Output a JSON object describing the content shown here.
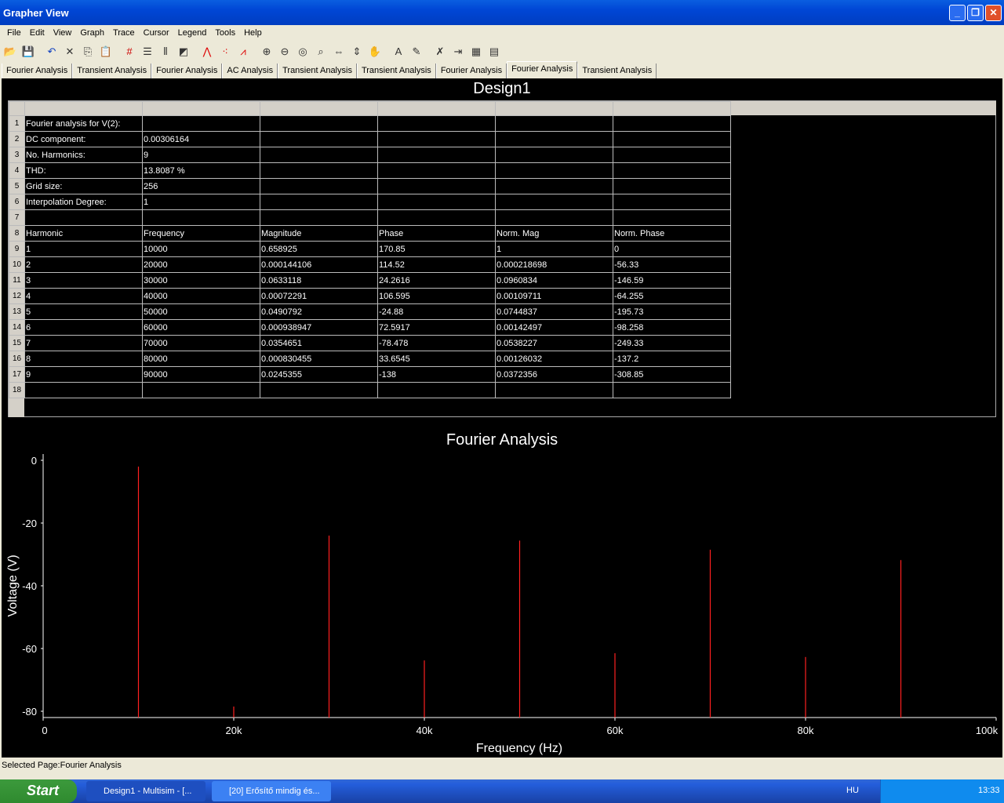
{
  "window": {
    "title": "Grapher View",
    "controls": [
      "_",
      "❐",
      "✕"
    ]
  },
  "menu": [
    "File",
    "Edit",
    "View",
    "Graph",
    "Trace",
    "Cursor",
    "Legend",
    "Tools",
    "Help"
  ],
  "toolbar_icons": [
    "open-icon",
    "save-icon",
    "undo-icon",
    "delete-icon",
    "copy-icon",
    "paste-icon",
    "grid-icon",
    "legend-icon",
    "cursors-icon",
    "reverse-colors-icon",
    "line-icon",
    "points-icon",
    "line-points-icon",
    "zoom-in-icon",
    "zoom-out-icon",
    "zoom-100-icon",
    "zoom-area-icon",
    "zoom-x-icon",
    "zoom-y-icon",
    "pan-icon",
    "text-icon",
    "label-icon",
    "overlay-icon",
    "export-icon",
    "page-properties-icon",
    "properties-icon"
  ],
  "tabs": [
    {
      "label": "Fourier Analysis"
    },
    {
      "label": "Transient Analysis"
    },
    {
      "label": "Fourier Analysis"
    },
    {
      "label": "AC Analysis"
    },
    {
      "label": "Transient Analysis"
    },
    {
      "label": "Transient Analysis"
    },
    {
      "label": "Fourier Analysis"
    },
    {
      "label": "Fourier Analysis",
      "active": true
    },
    {
      "label": "Transient Analysis"
    }
  ],
  "page_title": "Design1",
  "table": {
    "rows": [
      [
        "Fourier analysis for V(2):",
        "",
        "",
        "",
        "",
        ""
      ],
      [
        "DC component:",
        "0.00306164",
        "",
        "",
        "",
        ""
      ],
      [
        "No. Harmonics:",
        "9",
        "",
        "",
        "",
        ""
      ],
      [
        "THD:",
        "13.8087 %",
        "",
        "",
        "",
        ""
      ],
      [
        "Grid size:",
        "256",
        "",
        "",
        "",
        ""
      ],
      [
        "Interpolation Degree:",
        "1",
        "",
        "",
        "",
        ""
      ],
      [
        "",
        "",
        "",
        "",
        "",
        ""
      ],
      [
        "Harmonic",
        "Frequency",
        "Magnitude",
        "Phase",
        "Norm. Mag",
        "Norm. Phase"
      ],
      [
        "1",
        "10000",
        "0.658925",
        "170.85",
        "1",
        "0"
      ],
      [
        "2",
        "20000",
        "0.000144106",
        "114.52",
        "0.000218698",
        "-56.33"
      ],
      [
        "3",
        "30000",
        "0.0633118",
        "24.2616",
        "0.0960834",
        "-146.59"
      ],
      [
        "4",
        "40000",
        "0.00072291",
        "106.595",
        "0.00109711",
        "-64.255"
      ],
      [
        "5",
        "50000",
        "0.0490792",
        "-24.88",
        "0.0744837",
        "-195.73"
      ],
      [
        "6",
        "60000",
        "0.000938947",
        "72.5917",
        "0.00142497",
        "-98.258"
      ],
      [
        "7",
        "70000",
        "0.0354651",
        "-78.478",
        "0.0538227",
        "-249.33"
      ],
      [
        "8",
        "80000",
        "0.000830455",
        "33.6545",
        "0.00126032",
        "-137.2"
      ],
      [
        "9",
        "90000",
        "0.0245355",
        "-138",
        "0.0372356",
        "-308.85"
      ],
      [
        "",
        "",
        "",
        "",
        "",
        ""
      ]
    ]
  },
  "chart_data": {
    "type": "bar",
    "title": "Fourier Analysis",
    "xlabel": "Frequency (Hz)",
    "ylabel": "Voltage (V)",
    "xlim": [
      0,
      100000
    ],
    "ylim": [
      -82,
      2
    ],
    "xticks": [
      {
        "v": 0,
        "label": "0"
      },
      {
        "v": 20000,
        "label": "20k"
      },
      {
        "v": 40000,
        "label": "40k"
      },
      {
        "v": 60000,
        "label": "60k"
      },
      {
        "v": 80000,
        "label": "80k"
      },
      {
        "v": 100000,
        "label": "100k"
      }
    ],
    "yticks": [
      {
        "v": 0,
        "label": "0"
      },
      {
        "v": -20,
        "label": "-20"
      },
      {
        "v": -40,
        "label": "-40"
      },
      {
        "v": -60,
        "label": "-60"
      },
      {
        "v": -80,
        "label": "-80"
      }
    ],
    "x": [
      10000,
      20000,
      30000,
      40000,
      50000,
      60000,
      70000,
      80000,
      90000
    ],
    "values": [
      -2,
      -78.5,
      -24,
      -63.8,
      -25.6,
      -61.5,
      -28.5,
      -62.7,
      -31.8
    ],
    "color": "#ff2020",
    "grid": false
  },
  "status": "Selected Page:Fourier Analysis",
  "taskbar": {
    "start": "Start",
    "tasks": [
      "Design1 - Multisim - [...",
      "[20] Erősítő mindig és..."
    ],
    "lang": "HU",
    "clock": "13:33"
  }
}
